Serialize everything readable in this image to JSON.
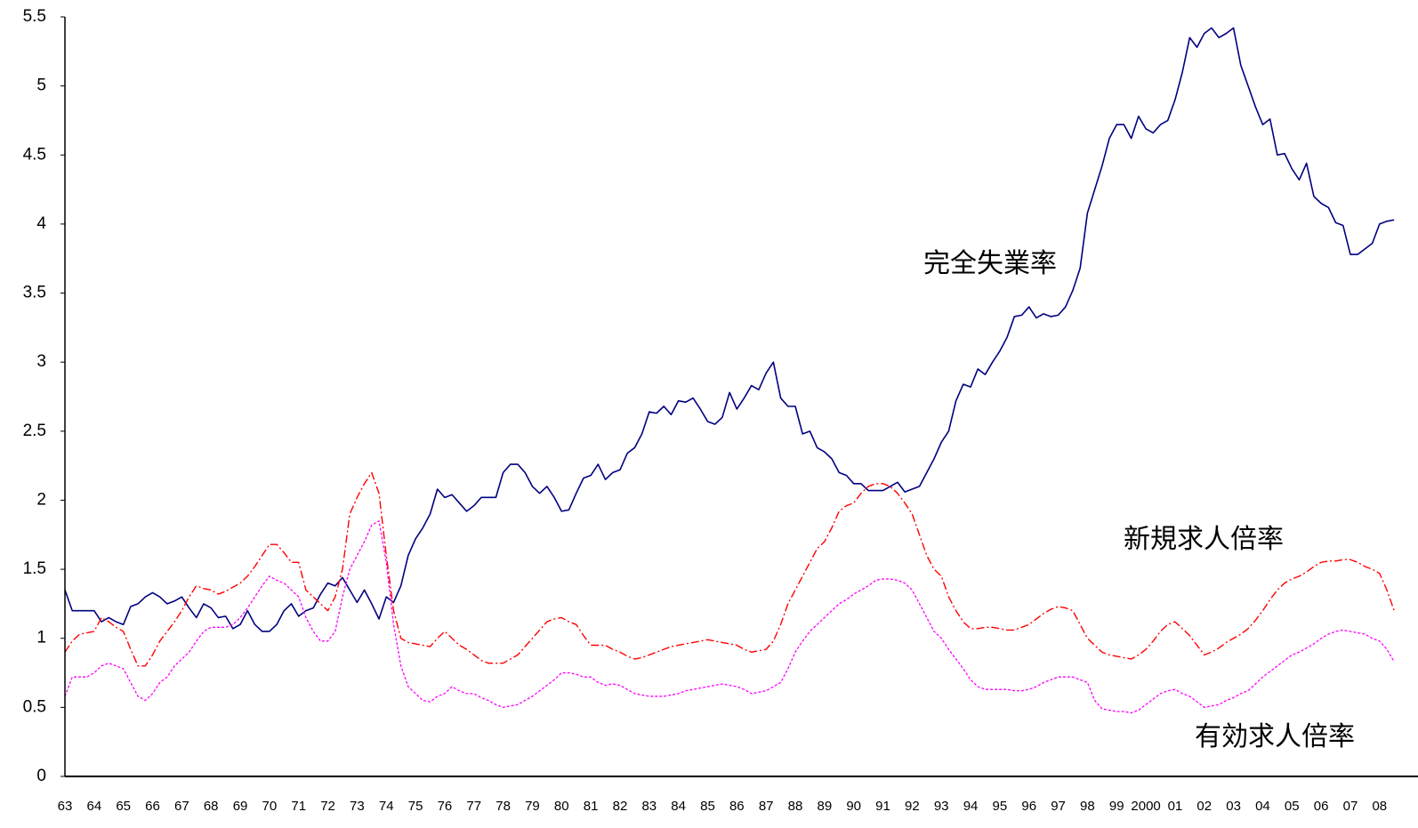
{
  "chart_data": {
    "type": "line",
    "categories": [
      "63",
      null,
      null,
      null,
      "64",
      null,
      null,
      null,
      "65",
      null,
      null,
      null,
      "66",
      null,
      null,
      null,
      "67",
      null,
      null,
      null,
      "68",
      null,
      null,
      null,
      "69",
      null,
      null,
      null,
      "70",
      null,
      null,
      null,
      "71",
      null,
      null,
      null,
      "72",
      null,
      null,
      null,
      "73",
      null,
      null,
      null,
      "74",
      null,
      null,
      null,
      "75",
      null,
      null,
      null,
      "76",
      null,
      null,
      null,
      "77",
      null,
      null,
      null,
      "78",
      null,
      null,
      null,
      "79",
      null,
      null,
      null,
      "80",
      null,
      null,
      null,
      "81",
      null,
      null,
      null,
      "82",
      null,
      null,
      null,
      "83",
      null,
      null,
      null,
      "84",
      null,
      null,
      null,
      "85",
      null,
      null,
      null,
      "86",
      null,
      null,
      null,
      "87",
      null,
      null,
      null,
      "88",
      null,
      null,
      null,
      "89",
      null,
      null,
      null,
      "90",
      null,
      null,
      null,
      "91",
      null,
      null,
      null,
      "92",
      null,
      null,
      null,
      "93",
      null,
      null,
      null,
      "94",
      null,
      null,
      null,
      "95",
      null,
      null,
      null,
      "96",
      null,
      null,
      null,
      "97",
      null,
      null,
      null,
      "98",
      null,
      null,
      null,
      "99",
      null,
      null,
      null,
      "2000",
      null,
      null,
      null,
      "01",
      null,
      null,
      null,
      "02",
      null,
      null,
      null,
      "03",
      null,
      null,
      null,
      "04",
      null,
      null,
      null,
      "05",
      null,
      null,
      null,
      "06",
      null,
      null,
      null,
      "07",
      null,
      null,
      null,
      "08",
      null,
      null
    ],
    "series": [
      {
        "name": "完全失業率",
        "color": "#000080",
        "values": [
          1.35,
          1.2,
          1.2,
          1.2,
          1.2,
          1.12,
          1.15,
          1.12,
          1.1,
          1.23,
          1.25,
          1.3,
          1.33,
          1.3,
          1.25,
          1.27,
          1.3,
          1.22,
          1.15,
          1.25,
          1.22,
          1.15,
          1.16,
          1.07,
          1.1,
          1.2,
          1.1,
          1.05,
          1.05,
          1.1,
          1.2,
          1.25,
          1.16,
          1.2,
          1.22,
          1.32,
          1.4,
          1.38,
          1.44,
          1.35,
          1.26,
          1.35,
          1.25,
          1.14,
          1.3,
          1.26,
          1.38,
          1.6,
          1.72,
          1.8,
          1.9,
          2.08,
          2.02,
          2.04,
          1.98,
          1.92,
          1.96,
          2.02,
          2.02,
          2.02,
          2.2,
          2.26,
          2.26,
          2.2,
          2.1,
          2.05,
          2.1,
          2.02,
          1.92,
          1.93,
          2.05,
          2.16,
          2.18,
          2.26,
          2.15,
          2.2,
          2.22,
          2.34,
          2.38,
          2.48,
          2.64,
          2.63,
          2.68,
          2.62,
          2.72,
          2.71,
          2.74,
          2.66,
          2.57,
          2.55,
          2.6,
          2.78,
          2.66,
          2.74,
          2.83,
          2.8,
          2.92,
          3.0,
          2.74,
          2.68,
          2.68,
          2.48,
          2.5,
          2.38,
          2.35,
          2.3,
          2.2,
          2.18,
          2.12,
          2.12,
          2.07,
          2.07,
          2.07,
          2.1,
          2.13,
          2.06,
          2.08,
          2.1,
          2.2,
          2.3,
          2.42,
          2.5,
          2.72,
          2.84,
          2.82,
          2.95,
          2.91,
          3.0,
          3.08,
          3.18,
          3.33,
          3.34,
          3.4,
          3.32,
          3.35,
          3.33,
          3.34,
          3.4,
          3.52,
          3.68,
          4.08,
          4.25,
          4.42,
          4.62,
          4.72,
          4.72,
          4.62,
          4.78,
          4.69,
          4.66,
          4.72,
          4.75,
          4.9,
          5.1,
          5.35,
          5.28,
          5.38,
          5.42,
          5.35,
          5.38,
          5.42,
          5.15,
          5.0,
          4.85,
          4.72,
          4.76,
          4.5,
          4.51,
          4.4,
          4.32,
          4.44,
          4.2,
          4.15,
          4.12,
          4.01,
          3.99,
          3.78,
          3.78,
          3.82,
          3.86,
          4.0,
          4.02,
          4.03
        ]
      },
      {
        "name": "新規求人倍率",
        "color": "#ff0000",
        "values": [
          0.9,
          0.98,
          1.03,
          1.04,
          1.05,
          1.15,
          1.12,
          1.08,
          1.05,
          0.92,
          0.8,
          0.8,
          0.88,
          0.98,
          1.05,
          1.12,
          1.2,
          1.3,
          1.38,
          1.36,
          1.35,
          1.32,
          1.34,
          1.37,
          1.4,
          1.45,
          1.52,
          1.6,
          1.68,
          1.68,
          1.62,
          1.55,
          1.55,
          1.35,
          1.3,
          1.25,
          1.2,
          1.3,
          1.5,
          1.9,
          2.02,
          2.12,
          2.2,
          2.05,
          1.6,
          1.2,
          1.0,
          0.97,
          0.96,
          0.95,
          0.94,
          1.0,
          1.05,
          1.0,
          0.95,
          0.92,
          0.88,
          0.84,
          0.82,
          0.82,
          0.82,
          0.85,
          0.88,
          0.94,
          1.0,
          1.06,
          1.12,
          1.14,
          1.15,
          1.12,
          1.1,
          1.02,
          0.95,
          0.95,
          0.95,
          0.92,
          0.9,
          0.87,
          0.85,
          0.86,
          0.88,
          0.9,
          0.92,
          0.94,
          0.95,
          0.96,
          0.97,
          0.98,
          0.99,
          0.98,
          0.97,
          0.96,
          0.95,
          0.92,
          0.9,
          0.91,
          0.92,
          0.98,
          1.1,
          1.25,
          1.35,
          1.45,
          1.55,
          1.65,
          1.7,
          1.8,
          1.92,
          1.96,
          1.98,
          2.05,
          2.1,
          2.12,
          2.12,
          2.1,
          2.05,
          1.98,
          1.9,
          1.75,
          1.6,
          1.5,
          1.45,
          1.3,
          1.2,
          1.12,
          1.07,
          1.07,
          1.08,
          1.08,
          1.07,
          1.06,
          1.06,
          1.08,
          1.1,
          1.14,
          1.18,
          1.21,
          1.23,
          1.22,
          1.2,
          1.1,
          1.0,
          0.95,
          0.9,
          0.88,
          0.87,
          0.86,
          0.85,
          0.88,
          0.92,
          0.98,
          1.05,
          1.1,
          1.12,
          1.07,
          1.02,
          0.95,
          0.88,
          0.9,
          0.93,
          0.97,
          1.0,
          1.03,
          1.07,
          1.13,
          1.2,
          1.28,
          1.35,
          1.4,
          1.43,
          1.45,
          1.48,
          1.52,
          1.55,
          1.56,
          1.56,
          1.57,
          1.57,
          1.55,
          1.52,
          1.5,
          1.47,
          1.35,
          1.2
        ]
      },
      {
        "name": "有効求人倍率",
        "color": "#ff00ff",
        "values": [
          0.58,
          0.72,
          0.72,
          0.72,
          0.75,
          0.8,
          0.82,
          0.8,
          0.78,
          0.68,
          0.58,
          0.55,
          0.6,
          0.68,
          0.72,
          0.8,
          0.85,
          0.9,
          0.98,
          1.05,
          1.08,
          1.08,
          1.08,
          1.1,
          1.15,
          1.22,
          1.3,
          1.38,
          1.45,
          1.42,
          1.4,
          1.35,
          1.3,
          1.15,
          1.05,
          0.98,
          0.98,
          1.05,
          1.3,
          1.5,
          1.6,
          1.7,
          1.82,
          1.85,
          1.55,
          1.1,
          0.8,
          0.65,
          0.6,
          0.55,
          0.54,
          0.58,
          0.6,
          0.65,
          0.62,
          0.6,
          0.6,
          0.57,
          0.55,
          0.52,
          0.5,
          0.51,
          0.52,
          0.55,
          0.58,
          0.62,
          0.66,
          0.7,
          0.75,
          0.75,
          0.74,
          0.72,
          0.72,
          0.68,
          0.66,
          0.67,
          0.66,
          0.63,
          0.6,
          0.59,
          0.58,
          0.58,
          0.58,
          0.59,
          0.6,
          0.62,
          0.63,
          0.64,
          0.65,
          0.66,
          0.67,
          0.66,
          0.65,
          0.63,
          0.6,
          0.61,
          0.62,
          0.65,
          0.68,
          0.78,
          0.9,
          0.98,
          1.05,
          1.1,
          1.15,
          1.2,
          1.25,
          1.28,
          1.32,
          1.35,
          1.38,
          1.42,
          1.43,
          1.43,
          1.42,
          1.4,
          1.35,
          1.25,
          1.15,
          1.05,
          1.0,
          0.92,
          0.85,
          0.78,
          0.7,
          0.65,
          0.63,
          0.63,
          0.63,
          0.63,
          0.62,
          0.62,
          0.63,
          0.65,
          0.68,
          0.7,
          0.72,
          0.72,
          0.72,
          0.7,
          0.68,
          0.55,
          0.49,
          0.48,
          0.47,
          0.47,
          0.46,
          0.48,
          0.52,
          0.56,
          0.6,
          0.62,
          0.63,
          0.6,
          0.58,
          0.54,
          0.5,
          0.51,
          0.52,
          0.55,
          0.57,
          0.6,
          0.62,
          0.67,
          0.72,
          0.76,
          0.8,
          0.84,
          0.88,
          0.9,
          0.93,
          0.96,
          1.0,
          1.03,
          1.05,
          1.06,
          1.05,
          1.04,
          1.03,
          1.0,
          0.98,
          0.92,
          0.83
        ]
      }
    ],
    "ylim": [
      0,
      5.5
    ],
    "yticks": [
      0,
      0.5,
      1,
      1.5,
      2,
      2.5,
      3,
      3.5,
      4,
      4.5,
      5,
      5.5
    ]
  }
}
